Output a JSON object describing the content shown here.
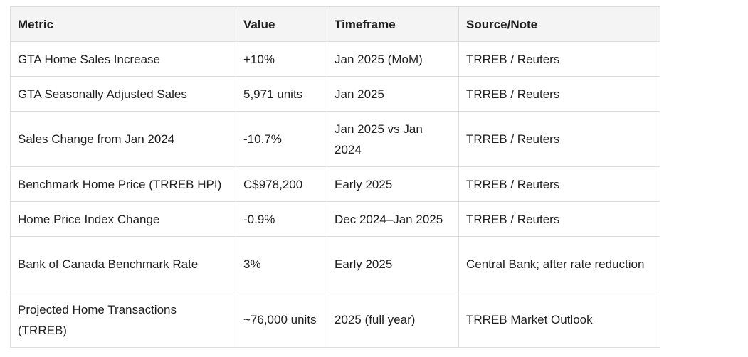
{
  "table": {
    "headers": [
      "Metric",
      "Value",
      "Timeframe",
      "Source/Note"
    ],
    "rows": [
      {
        "metric": "GTA Home Sales Increase",
        "value": "+10%",
        "timeframe": "Jan 2025 (MoM)",
        "source": "TRREB / Reuters"
      },
      {
        "metric": "GTA Seasonally Adjusted Sales",
        "value": "5,971 units",
        "timeframe": "Jan 2025",
        "source": "TRREB / Reuters"
      },
      {
        "metric": "Sales Change from Jan 2024",
        "value": "-10.7%",
        "timeframe": "Jan 2025 vs Jan 2024",
        "source": "TRREB / Reuters"
      },
      {
        "metric": "Benchmark Home Price (TRREB HPI)",
        "value": "C$978,200",
        "timeframe": "Early 2025",
        "source": "TRREB / Reuters"
      },
      {
        "metric": "Home Price Index Change",
        "value": "-0.9%",
        "timeframe": "Dec 2024–Jan 2025",
        "source": "TRREB / Reuters"
      },
      {
        "metric": "Bank of Canada Benchmark Rate",
        "value": "3%",
        "timeframe": "Early 2025",
        "source": "Central Bank; after rate reduction"
      },
      {
        "metric": "Projected Home Transactions (TRREB)",
        "value": "~76,000 units",
        "timeframe": "2025 (full year)",
        "source": "TRREB Market Outlook"
      }
    ]
  }
}
